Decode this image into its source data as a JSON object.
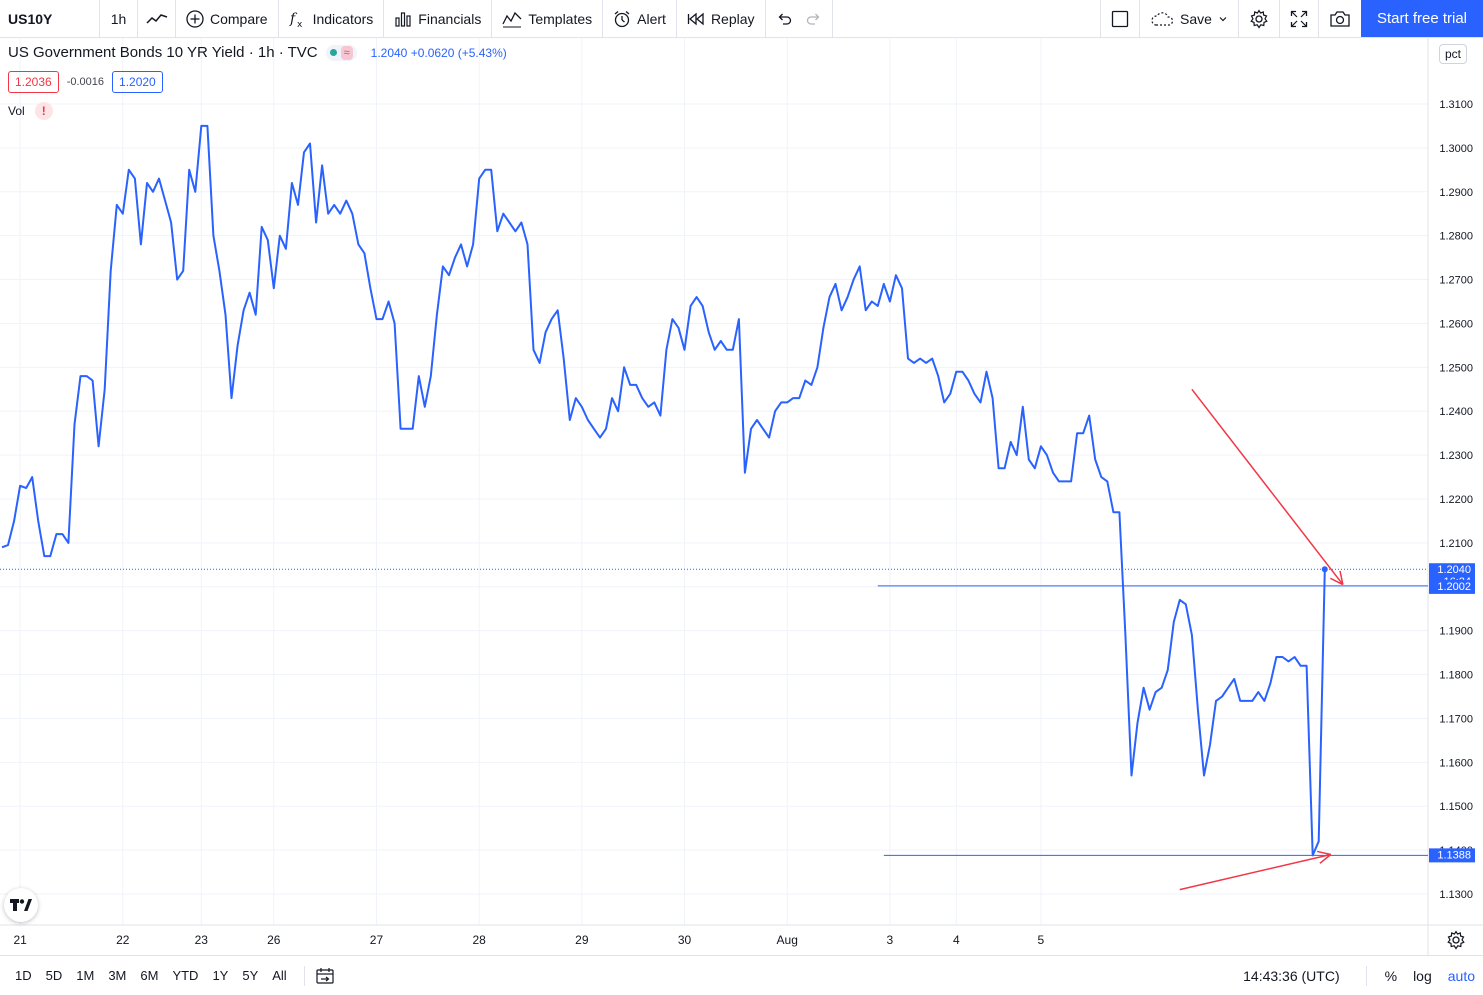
{
  "toolbar": {
    "symbol": "US10Y",
    "interval": "1h",
    "compare": "Compare",
    "indicators": "Indicators",
    "financials": "Financials",
    "templates": "Templates",
    "alert": "Alert",
    "replay": "Replay",
    "save": "Save",
    "trial": "Start free trial"
  },
  "legend": {
    "title": "US Government Bonds 10 YR Yield · 1h · TVC",
    "wave": "≈",
    "quote": "1.2040 +0.0620 (+5.43%)",
    "bid": "1.2036",
    "spread": "-0.0016",
    "ask": "1.2020",
    "vol": "Vol",
    "vol_warning": "!"
  },
  "scale_mode": "pct",
  "bottom": {
    "ranges": [
      "1D",
      "5D",
      "1M",
      "3M",
      "6M",
      "YTD",
      "1Y",
      "5Y",
      "All"
    ],
    "time": "14:43:36 (UTC)",
    "percent": "%",
    "log": "log",
    "auto": "auto"
  },
  "colors": {
    "line": "#2962ff",
    "annotation": "#f23645",
    "grid": "#f0f3fa"
  },
  "chart_data": {
    "type": "line",
    "title": "US Government Bonds 10 YR Yield",
    "xlabel": "",
    "ylabel": "",
    "ylim": [
      1.1225,
      1.3192
    ],
    "y_ticks": [
      "1.1300",
      "1.1400",
      "1.1500",
      "1.1600",
      "1.1700",
      "1.1800",
      "1.1900",
      "1.2000",
      "1.2100",
      "1.2200",
      "1.2300",
      "1.2400",
      "1.2500",
      "1.2600",
      "1.2700",
      "1.2800",
      "1.2900",
      "1.3000",
      "1.3100"
    ],
    "x_ticks": [
      {
        "label": "21",
        "index": 3.0
      },
      {
        "label": "22",
        "index": 20.0
      },
      {
        "label": "23",
        "index": 33.0
      },
      {
        "label": "26",
        "index": 45.0
      },
      {
        "label": "27",
        "index": 62.0
      },
      {
        "label": "28",
        "index": 79.0
      },
      {
        "label": "29",
        "index": 96.0
      },
      {
        "label": "30",
        "index": 113.0
      },
      {
        "label": "Aug",
        "index": 130.0
      },
      {
        "label": "3",
        "index": 147.0
      },
      {
        "label": "4",
        "index": 158.0
      },
      {
        "label": "5",
        "index": 172.0
      }
    ],
    "series": [
      {
        "values": [
          1.209,
          1.2095,
          1.215,
          1.223,
          1.2225,
          1.225,
          1.215,
          1.207,
          1.207,
          1.212,
          1.212,
          1.21,
          1.237,
          1.248,
          1.248,
          1.247,
          1.232,
          1.245,
          1.272,
          1.287,
          1.285,
          1.295,
          1.293,
          1.278,
          1.292,
          1.29,
          1.293,
          1.288,
          1.283,
          1.27,
          1.272,
          1.295,
          1.29,
          1.305,
          1.305,
          1.28,
          1.272,
          1.262,
          1.243,
          1.255,
          1.263,
          1.267,
          1.262,
          1.282,
          1.279,
          1.268,
          1.28,
          1.277,
          1.292,
          1.287,
          1.299,
          1.301,
          1.283,
          1.296,
          1.285,
          1.287,
          1.285,
          1.288,
          1.285,
          1.278,
          1.276,
          1.268,
          1.261,
          1.261,
          1.265,
          1.26,
          1.236,
          1.236,
          1.236,
          1.248,
          1.241,
          1.248,
          1.262,
          1.273,
          1.271,
          1.275,
          1.278,
          1.273,
          1.278,
          1.293,
          1.295,
          1.295,
          1.281,
          1.285,
          1.283,
          1.281,
          1.283,
          1.278,
          1.254,
          1.251,
          1.258,
          1.261,
          1.263,
          1.252,
          1.238,
          1.243,
          1.241,
          1.238,
          1.236,
          1.234,
          1.236,
          1.243,
          1.24,
          1.25,
          1.246,
          1.246,
          1.243,
          1.241,
          1.242,
          1.239,
          1.254,
          1.261,
          1.259,
          1.254,
          1.264,
          1.266,
          1.264,
          1.258,
          1.254,
          1.256,
          1.254,
          1.254,
          1.261,
          1.226,
          1.236,
          1.238,
          1.236,
          1.234,
          1.24,
          1.242,
          1.242,
          1.243,
          1.243,
          1.247,
          1.246,
          1.25,
          1.259,
          1.266,
          1.269,
          1.263,
          1.266,
          1.27,
          1.273,
          1.263,
          1.265,
          1.264,
          1.269,
          1.265,
          1.271,
          1.268,
          1.252,
          1.251,
          1.252,
          1.251,
          1.252,
          1.248,
          1.242,
          1.244,
          1.249,
          1.249,
          1.247,
          1.244,
          1.242,
          1.249,
          1.243,
          1.227,
          1.227,
          1.233,
          1.23,
          1.241,
          1.229,
          1.227,
          1.232,
          1.23,
          1.226,
          1.224,
          1.224,
          1.224,
          1.235,
          1.235,
          1.239,
          1.229,
          1.225,
          1.224,
          1.217,
          1.217,
          1.189,
          1.157,
          1.169,
          1.177,
          1.172,
          1.176,
          1.177,
          1.181,
          1.192,
          1.197,
          1.196,
          1.189,
          1.172,
          1.157,
          1.164,
          1.174,
          1.175,
          1.177,
          1.179,
          1.174,
          1.174,
          1.174,
          1.176,
          1.174,
          1.178,
          1.184,
          1.184,
          1.183,
          1.184,
          1.182,
          1.182,
          1.1388,
          1.142,
          1.204
        ]
      }
    ],
    "last_value": {
      "value": "1.2040",
      "countdown": "16:24"
    },
    "horizontal_lines": [
      {
        "value": "1.2002",
        "from_index": 145.0
      },
      {
        "value": "1.1388",
        "from_index": 146.0
      }
    ],
    "annotations": [
      {
        "type": "arrow",
        "from": {
          "index": 197.0,
          "value": 1.245
        },
        "to": {
          "index": 222.0,
          "value": 1.2005
        }
      },
      {
        "type": "arrow",
        "from": {
          "index": 195.0,
          "value": 1.131
        },
        "to": {
          "index": 220.0,
          "value": 1.139
        }
      }
    ]
  }
}
